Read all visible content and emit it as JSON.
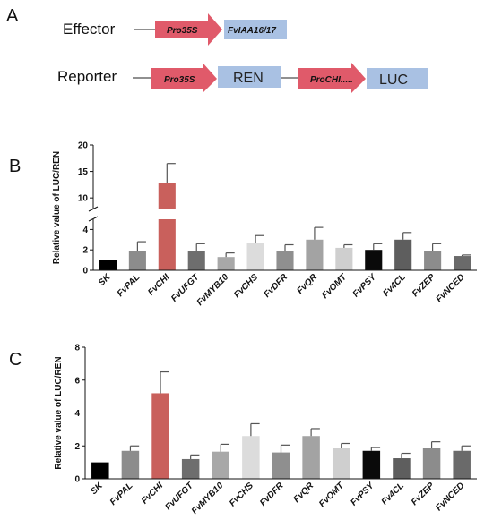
{
  "panel_a": {
    "letter": "A",
    "effector": {
      "label": "Effector",
      "promoter": "Pro35S",
      "gene": "FvIAA16/17"
    },
    "reporter": {
      "label": "Reporter",
      "promoter1": "Pro35S",
      "gene1": "REN",
      "promoter2": "ProCHI.....",
      "gene2": "LUC"
    },
    "colors": {
      "arrow": "#e05a6a",
      "box": "#a9c1e3"
    }
  },
  "chart_data": [
    {
      "panel": "B",
      "type": "bar",
      "ylabel": "Relative value of LUC/REN",
      "axis_break": {
        "lower": [
          0,
          5
        ],
        "upper": [
          8,
          20
        ]
      },
      "yticks_lower": [
        0,
        2,
        4
      ],
      "yticks_upper": [
        10,
        15,
        20
      ],
      "categories": [
        "SK",
        "FvPAL",
        "FvCHI",
        "FvUFGT",
        "FvMYB10",
        "FvCHS",
        "FvDFR",
        "FvQR",
        "FvOMT",
        "FvPSY",
        "Fv4CL",
        "FvZEP",
        "FvNCED"
      ],
      "values": [
        1.0,
        1.9,
        12.9,
        1.9,
        1.3,
        2.7,
        1.9,
        3.0,
        2.2,
        2.0,
        3.0,
        1.9,
        1.4
      ],
      "errors": [
        0.0,
        0.9,
        3.6,
        0.7,
        0.4,
        0.7,
        0.6,
        1.2,
        0.3,
        0.6,
        0.7,
        0.7,
        0.1
      ],
      "colors": [
        "#000000",
        "#8c8c8c",
        "#c9605c",
        "#6e6e6e",
        "#a8a8a8",
        "#dcdcdc",
        "#8f8f8f",
        "#a3a3a3",
        "#cfcfcf",
        "#0a0a0a",
        "#5e5e5e",
        "#8c8c8c",
        "#6a6a6a"
      ]
    },
    {
      "panel": "C",
      "type": "bar",
      "ylabel": "Relative value of LUC/REN",
      "ylim": [
        0,
        8
      ],
      "yticks": [
        0,
        2,
        4,
        6,
        8
      ],
      "categories": [
        "SK",
        "FvPAL",
        "FvCHI",
        "FvUFGT",
        "FvMYB10",
        "FvCHS",
        "FvDFR",
        "FvQR",
        "FvOMT",
        "FvPSY",
        "Fv4CL",
        "FvZEP",
        "FvNCED"
      ],
      "values": [
        1.0,
        1.7,
        5.2,
        1.2,
        1.65,
        2.6,
        1.6,
        2.6,
        1.85,
        1.7,
        1.25,
        1.85,
        1.7
      ],
      "errors": [
        0.0,
        0.3,
        1.3,
        0.25,
        0.45,
        0.75,
        0.45,
        0.45,
        0.3,
        0.2,
        0.3,
        0.4,
        0.3
      ],
      "colors": [
        "#000000",
        "#8c8c8c",
        "#c9605c",
        "#6e6e6e",
        "#a8a8a8",
        "#dcdcdc",
        "#8f8f8f",
        "#a3a3a3",
        "#cfcfcf",
        "#0a0a0a",
        "#5e5e5e",
        "#8c8c8c",
        "#6a6a6a"
      ]
    }
  ],
  "panel_letters": {
    "b": "B",
    "c": "C"
  }
}
